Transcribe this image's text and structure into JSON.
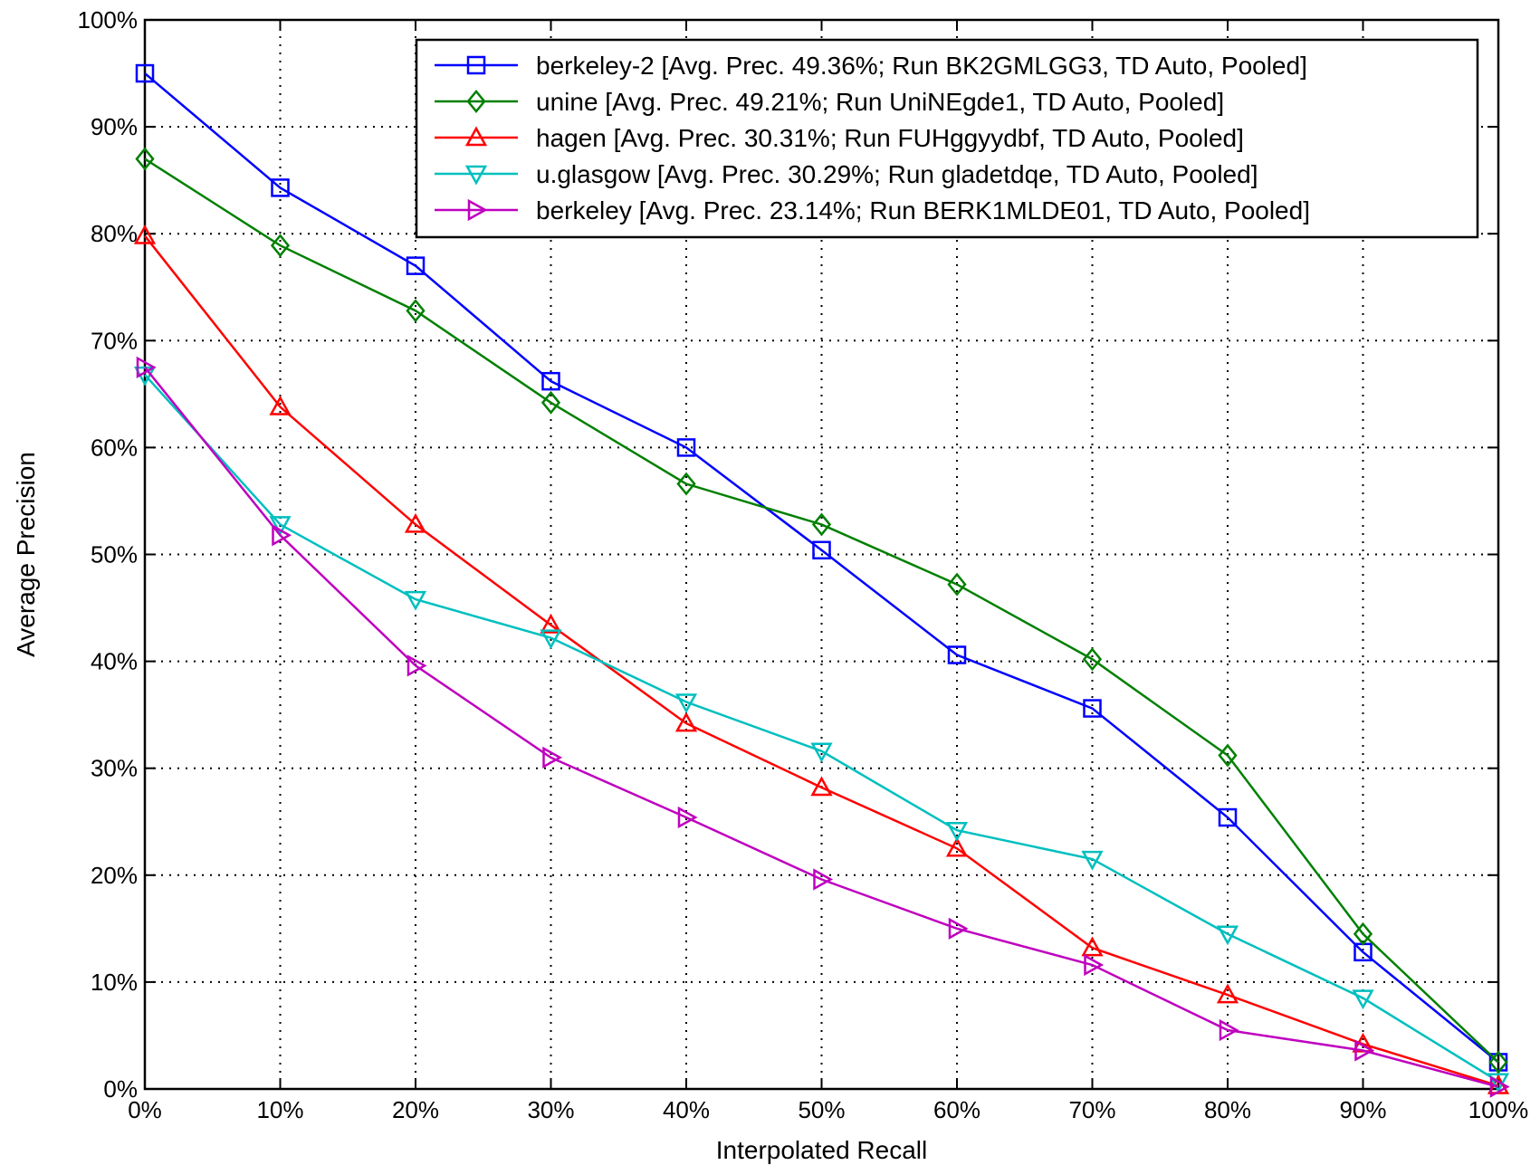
{
  "chart_data": {
    "type": "line",
    "title": "",
    "xlabel": "Interpolated Recall",
    "ylabel": "Average Precision",
    "x": [
      0,
      10,
      20,
      30,
      40,
      50,
      60,
      70,
      80,
      90,
      100
    ],
    "xlim": [
      0,
      100
    ],
    "ylim": [
      0,
      100
    ],
    "xticks": [
      "0%",
      "10%",
      "20%",
      "30%",
      "40%",
      "50%",
      "60%",
      "70%",
      "80%",
      "90%",
      "100%"
    ],
    "yticks": [
      "0%",
      "10%",
      "20%",
      "30%",
      "40%",
      "50%",
      "60%",
      "70%",
      "80%",
      "90%",
      "100%"
    ],
    "grid": true,
    "legend_position": "top-right",
    "series": [
      {
        "name": "berkeley-2 [Avg. Prec. 49.36%; Run BK2GMLGG3, TD Auto, Pooled]",
        "color": "#0000ff",
        "marker": "square",
        "values": [
          95,
          84.3,
          77,
          66.2,
          60,
          50.4,
          40.6,
          35.6,
          25.4,
          12.8,
          2.5
        ]
      },
      {
        "name": "unine [Avg. Prec. 49.21%; Run UniNEgde1, TD Auto, Pooled]",
        "color": "#008000",
        "marker": "diamond",
        "values": [
          87,
          78.9,
          72.8,
          64.2,
          56.6,
          52.8,
          47.2,
          40.2,
          31.2,
          14.5,
          2.5
        ]
      },
      {
        "name": "hagen [Avg. Prec. 30.31%; Run FUHggyydbf, TD Auto, Pooled]",
        "color": "#ff0000",
        "marker": "triangle-up",
        "values": [
          79.8,
          63.8,
          52.8,
          43.4,
          34.2,
          28.2,
          22.5,
          13.2,
          8.8,
          4.2,
          0.3
        ]
      },
      {
        "name": "u.glasgow [Avg. Prec. 30.29%; Run gladetdqe, TD Auto, Pooled]",
        "color": "#00bfbf",
        "marker": "triangle-down",
        "values": [
          66.8,
          52.8,
          45.8,
          42.2,
          36.2,
          31.6,
          24.2,
          21.5,
          14.5,
          8.5,
          0.7
        ]
      },
      {
        "name": "berkeley [Avg. Prec. 23.14%; Run BERK1MLDE01, TD Auto, Pooled]",
        "color": "#bf00bf",
        "marker": "triangle-right",
        "values": [
          67.5,
          51.8,
          39.6,
          31,
          25.4,
          19.6,
          15,
          11.6,
          5.5,
          3.6,
          0.2
        ]
      }
    ]
  }
}
